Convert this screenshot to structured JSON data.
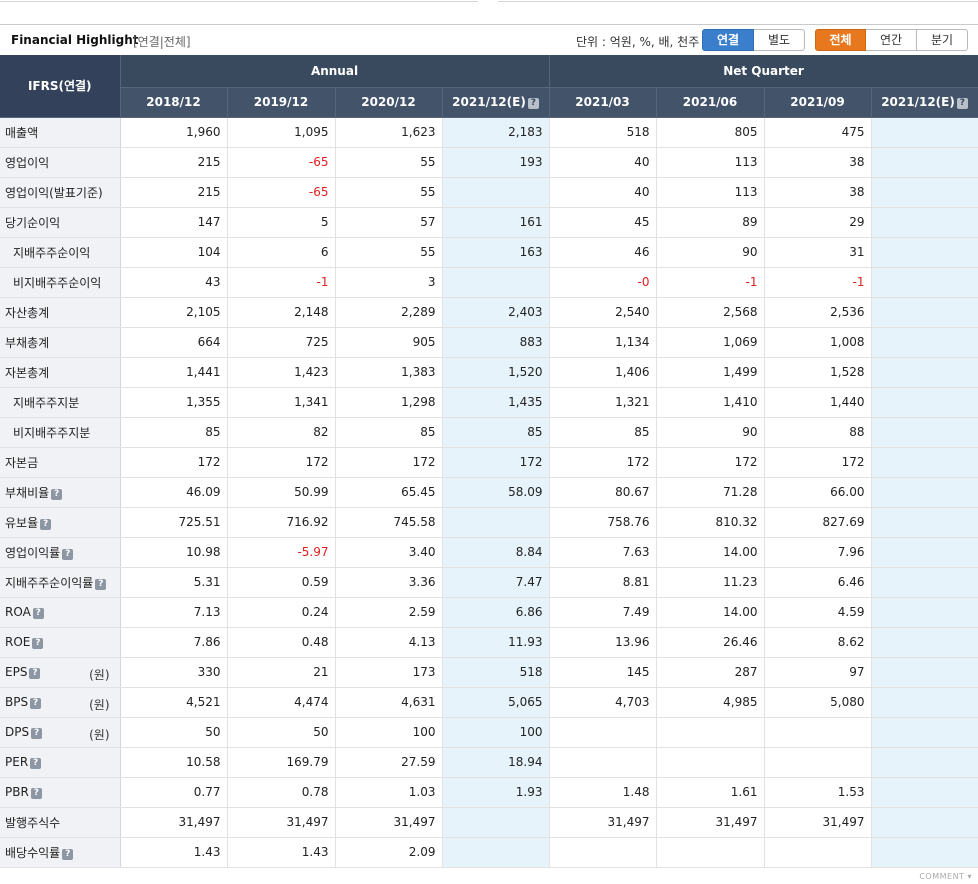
{
  "header": {
    "title": "Financial Highlight",
    "subtitle": "[연결|전체]",
    "unit": "단위 : 억원, %, 배, 천주",
    "scope_buttons": [
      "연결",
      "별도"
    ],
    "period_buttons": [
      "전체",
      "연간",
      "분기"
    ]
  },
  "table": {
    "corner": "IFRS(연결)",
    "group_annual": "Annual",
    "group_quarter": "Net Quarter",
    "columns": [
      "2018/12",
      "2019/12",
      "2020/12",
      "2021/12(E)",
      "2021/03",
      "2021/06",
      "2021/09",
      "2021/12(E)"
    ],
    "rows": [
      {
        "label": "매출액",
        "indent": false,
        "help": false,
        "unit": "",
        "values": [
          "1,960",
          "1,095",
          "1,623",
          "2,183",
          "518",
          "805",
          "475",
          ""
        ]
      },
      {
        "label": "영업이익",
        "indent": false,
        "help": false,
        "unit": "",
        "values": [
          "215",
          "-65",
          "55",
          "193",
          "40",
          "113",
          "38",
          ""
        ]
      },
      {
        "label": "영업이익(발표기준)",
        "indent": false,
        "help": false,
        "unit": "",
        "values": [
          "215",
          "-65",
          "55",
          "",
          "40",
          "113",
          "38",
          ""
        ]
      },
      {
        "label": "당기순이익",
        "indent": false,
        "help": false,
        "unit": "",
        "values": [
          "147",
          "5",
          "57",
          "161",
          "45",
          "89",
          "29",
          ""
        ]
      },
      {
        "label": "지배주주순이익",
        "indent": true,
        "help": false,
        "unit": "",
        "values": [
          "104",
          "6",
          "55",
          "163",
          "46",
          "90",
          "31",
          ""
        ]
      },
      {
        "label": "비지배주주순이익",
        "indent": true,
        "help": false,
        "unit": "",
        "values": [
          "43",
          "-1",
          "3",
          "",
          "-0",
          "-1",
          "-1",
          ""
        ]
      },
      {
        "label": "자산총계",
        "indent": false,
        "help": false,
        "unit": "",
        "values": [
          "2,105",
          "2,148",
          "2,289",
          "2,403",
          "2,540",
          "2,568",
          "2,536",
          ""
        ]
      },
      {
        "label": "부채총계",
        "indent": false,
        "help": false,
        "unit": "",
        "values": [
          "664",
          "725",
          "905",
          "883",
          "1,134",
          "1,069",
          "1,008",
          ""
        ]
      },
      {
        "label": "자본총계",
        "indent": false,
        "help": false,
        "unit": "",
        "values": [
          "1,441",
          "1,423",
          "1,383",
          "1,520",
          "1,406",
          "1,499",
          "1,528",
          ""
        ]
      },
      {
        "label": "지배주주지분",
        "indent": true,
        "help": false,
        "unit": "",
        "values": [
          "1,355",
          "1,341",
          "1,298",
          "1,435",
          "1,321",
          "1,410",
          "1,440",
          ""
        ]
      },
      {
        "label": "비지배주주지분",
        "indent": true,
        "help": false,
        "unit": "",
        "values": [
          "85",
          "82",
          "85",
          "85",
          "85",
          "90",
          "88",
          ""
        ]
      },
      {
        "label": "자본금",
        "indent": false,
        "help": false,
        "unit": "",
        "values": [
          "172",
          "172",
          "172",
          "172",
          "172",
          "172",
          "172",
          ""
        ]
      },
      {
        "label": "부채비율",
        "indent": false,
        "help": true,
        "unit": "",
        "values": [
          "46.09",
          "50.99",
          "65.45",
          "58.09",
          "80.67",
          "71.28",
          "66.00",
          ""
        ]
      },
      {
        "label": "유보율",
        "indent": false,
        "help": true,
        "unit": "",
        "values": [
          "725.51",
          "716.92",
          "745.58",
          "",
          "758.76",
          "810.32",
          "827.69",
          ""
        ]
      },
      {
        "label": "영업이익률",
        "indent": false,
        "help": true,
        "unit": "",
        "values": [
          "10.98",
          "-5.97",
          "3.40",
          "8.84",
          "7.63",
          "14.00",
          "7.96",
          ""
        ]
      },
      {
        "label": "지배주주순이익률",
        "indent": false,
        "help": true,
        "unit": "",
        "values": [
          "5.31",
          "0.59",
          "3.36",
          "7.47",
          "8.81",
          "11.23",
          "6.46",
          ""
        ]
      },
      {
        "label": "ROA",
        "indent": false,
        "help": true,
        "unit": "",
        "values": [
          "7.13",
          "0.24",
          "2.59",
          "6.86",
          "7.49",
          "14.00",
          "4.59",
          ""
        ]
      },
      {
        "label": "ROE",
        "indent": false,
        "help": true,
        "unit": "",
        "values": [
          "7.86",
          "0.48",
          "4.13",
          "11.93",
          "13.96",
          "26.46",
          "8.62",
          ""
        ]
      },
      {
        "label": "EPS",
        "indent": false,
        "help": true,
        "unit": "(원)",
        "values": [
          "330",
          "21",
          "173",
          "518",
          "145",
          "287",
          "97",
          ""
        ]
      },
      {
        "label": "BPS",
        "indent": false,
        "help": true,
        "unit": "(원)",
        "values": [
          "4,521",
          "4,474",
          "4,631",
          "5,065",
          "4,703",
          "4,985",
          "5,080",
          ""
        ]
      },
      {
        "label": "DPS",
        "indent": false,
        "help": true,
        "unit": "(원)",
        "values": [
          "50",
          "50",
          "100",
          "100",
          "",
          "",
          "",
          ""
        ]
      },
      {
        "label": "PER",
        "indent": false,
        "help": true,
        "unit": "",
        "values": [
          "10.58",
          "169.79",
          "27.59",
          "18.94",
          "",
          "",
          "",
          ""
        ]
      },
      {
        "label": "PBR",
        "indent": false,
        "help": true,
        "unit": "",
        "values": [
          "0.77",
          "0.78",
          "1.03",
          "1.93",
          "1.48",
          "1.61",
          "1.53",
          ""
        ]
      },
      {
        "label": "발행주식수",
        "indent": false,
        "help": false,
        "unit": "",
        "values": [
          "31,497",
          "31,497",
          "31,497",
          "",
          "31,497",
          "31,497",
          "31,497",
          ""
        ]
      },
      {
        "label": "배당수익률",
        "indent": false,
        "help": true,
        "unit": "",
        "values": [
          "1.43",
          "1.43",
          "2.09",
          "",
          "",
          "",
          "",
          ""
        ]
      }
    ]
  },
  "footer": {
    "comment": "COMMENT ▾"
  }
}
